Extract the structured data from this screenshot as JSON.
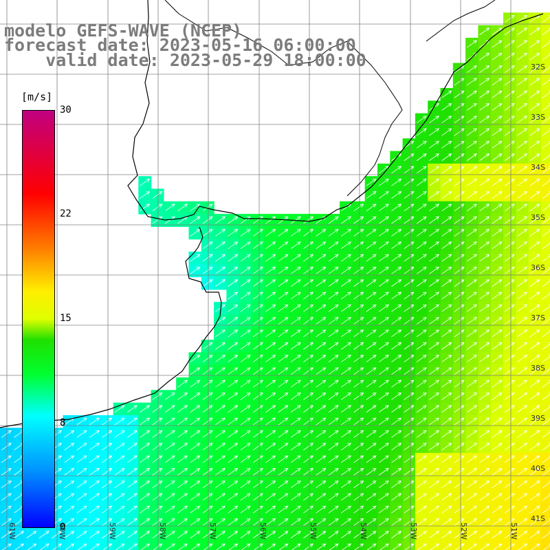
{
  "title": {
    "model": "modelo GEFS-WAVE (NCEP)",
    "forecast": "forecast date: 2023-05-16 06:00:00",
    "valid": "    valid date: 2023-05-29 18:00:00"
  },
  "colorbar": {
    "unit": "[m/s]",
    "ticks": [
      "30",
      "22",
      "15",
      "8",
      "0"
    ],
    "range": [
      0,
      30
    ],
    "stops": [
      {
        "v": 0,
        "color": "#0000ff"
      },
      {
        "v": 4,
        "color": "#0090ff"
      },
      {
        "v": 8,
        "color": "#00ffff"
      },
      {
        "v": 11,
        "color": "#00ff30"
      },
      {
        "v": 13.5,
        "color": "#20e000"
      },
      {
        "v": 15,
        "color": "#e0ff00"
      },
      {
        "v": 17,
        "color": "#ffee00"
      },
      {
        "v": 20,
        "color": "#ff8000"
      },
      {
        "v": 24,
        "color": "#ff0000"
      },
      {
        "v": 30,
        "color": "#c00080"
      }
    ]
  },
  "lat_labels": [
    "32S",
    "33S",
    "34S",
    "35S",
    "36S",
    "37S",
    "38S",
    "39S",
    "40S",
    "41S"
  ],
  "lon_labels": [
    "61W",
    "60W",
    "59W",
    "58W",
    "57W",
    "56W",
    "55W",
    "54W",
    "53W",
    "52W",
    "51W"
  ],
  "colors": {
    "land": "#ffffff",
    "grid": "#7a7a7a",
    "coast": "#000000",
    "arrow": "#ffffff",
    "title": "#7c7c7c"
  },
  "field": {
    "variable": "wind speed",
    "direction": "from SW (arrows pointing NE)"
  }
}
